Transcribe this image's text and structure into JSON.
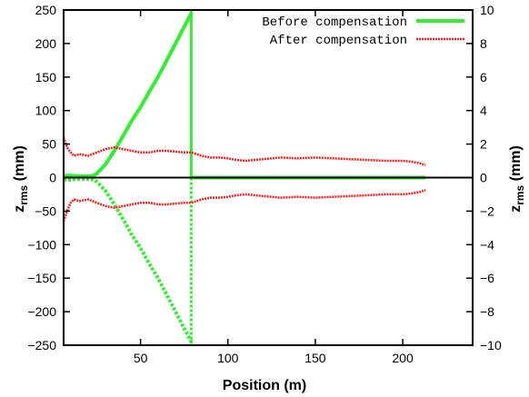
{
  "chart_data": {
    "type": "line",
    "title": "",
    "xlabel": "Position (m)",
    "ylabel_left": "z",
    "ylabel_left_sub": "rms",
    "ylabel_left_unit": " (mm)",
    "ylabel_right": "z",
    "ylabel_right_sub": "rms",
    "ylabel_right_unit": " (mm)",
    "xlim": [
      6,
      240
    ],
    "ylim_left": [
      -250,
      250
    ],
    "ylim_right": [
      -10,
      10
    ],
    "xticks": [
      50,
      100,
      150,
      200
    ],
    "yticks_left": [
      -250,
      -200,
      -150,
      -100,
      -50,
      0,
      50,
      100,
      150,
      200,
      250
    ],
    "yticks_right": [
      -10,
      -8,
      -6,
      -4,
      -2,
      0,
      2,
      4,
      6,
      8,
      10
    ],
    "legend_position": "top-right",
    "grid": false,
    "zero_line": true,
    "series": [
      {
        "name": "Before compensation",
        "axis": "left",
        "color": "#33ee33",
        "style": "solid",
        "upper": {
          "x": [
            6,
            10,
            15,
            20,
            23,
            25,
            30,
            35,
            40,
            45,
            50,
            55,
            60,
            65,
            70,
            75,
            79
          ],
          "y": [
            3,
            3,
            2,
            2,
            3,
            6,
            20,
            40,
            62,
            85,
            105,
            128,
            150,
            175,
            200,
            225,
            245
          ]
        },
        "lower": {
          "x": [
            6,
            10,
            15,
            20,
            23,
            25,
            30,
            35,
            40,
            45,
            50,
            55,
            60,
            65,
            70,
            75,
            79
          ],
          "y": [
            -3,
            -3,
            -2,
            -2,
            -3,
            -6,
            -20,
            -40,
            -62,
            -85,
            -105,
            -128,
            -150,
            -175,
            -200,
            -225,
            -245
          ]
        },
        "after_x": [
          79,
          100,
          150,
          200,
          213
        ],
        "after_y": [
          0,
          0,
          0,
          0,
          0
        ]
      },
      {
        "name": "After compensation",
        "axis": "right",
        "color": "#ee2222",
        "style": "dashed",
        "upper": {
          "x": [
            6,
            8,
            10,
            12,
            15,
            20,
            25,
            30,
            35,
            40,
            45,
            50,
            55,
            60,
            65,
            70,
            75,
            79,
            85,
            90,
            95,
            100,
            105,
            110,
            120,
            130,
            140,
            150,
            160,
            170,
            180,
            190,
            200,
            205,
            210,
            213
          ],
          "y": [
            2.4,
            1.8,
            1.5,
            1.3,
            1.4,
            1.3,
            1.5,
            1.7,
            1.8,
            1.7,
            1.6,
            1.5,
            1.5,
            1.6,
            1.6,
            1.55,
            1.5,
            1.5,
            1.3,
            1.2,
            1.2,
            1.15,
            1.05,
            1.0,
            1.1,
            1.2,
            1.15,
            1.2,
            1.15,
            1.1,
            1.05,
            1.0,
            1.0,
            0.95,
            0.85,
            0.75
          ]
        },
        "lower": {
          "x": [
            6,
            8,
            10,
            12,
            15,
            20,
            25,
            30,
            35,
            40,
            45,
            50,
            55,
            60,
            65,
            70,
            75,
            79,
            85,
            90,
            95,
            100,
            105,
            110,
            120,
            130,
            140,
            150,
            160,
            170,
            180,
            190,
            200,
            205,
            210,
            213
          ],
          "y": [
            -2.6,
            -2.0,
            -1.5,
            -1.3,
            -1.4,
            -1.3,
            -1.5,
            -1.7,
            -1.8,
            -1.7,
            -1.6,
            -1.5,
            -1.5,
            -1.6,
            -1.6,
            -1.55,
            -1.5,
            -1.5,
            -1.3,
            -1.2,
            -1.2,
            -1.15,
            -1.05,
            -1.0,
            -1.1,
            -1.2,
            -1.15,
            -1.2,
            -1.15,
            -1.1,
            -1.05,
            -1.0,
            -1.0,
            -0.95,
            -0.85,
            -0.75
          ]
        }
      }
    ],
    "annotations": [
      {
        "type": "vertical_line",
        "series": "Before compensation",
        "x": 79,
        "y_from": -250,
        "y_to": 250,
        "style": "solid-top-dashed-bottom"
      }
    ]
  }
}
